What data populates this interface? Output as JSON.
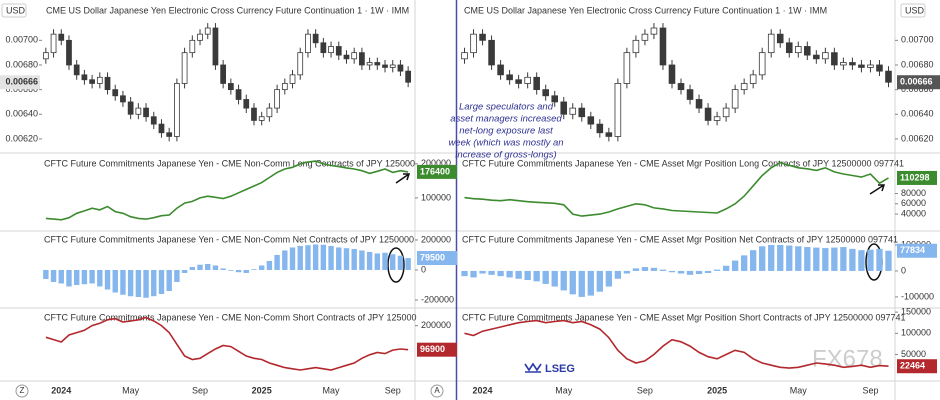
{
  "chart_data": [
    {
      "type": "candlestick",
      "title": "CME US Dollar Japanese Yen Electronic Cross Currency Future Continuation 1 · 1W · IMM",
      "currency": "USD",
      "categories": [
        null,
        null,
        "2024",
        null,
        null,
        null,
        null,
        null,
        null,
        null,
        null,
        "May",
        null,
        null,
        null,
        null,
        null,
        null,
        null,
        null,
        "Sep",
        null,
        null,
        null,
        null,
        null,
        null,
        null,
        "2025",
        null,
        null,
        null,
        null,
        null,
        null,
        null,
        null,
        "May",
        null,
        null,
        null,
        null,
        null,
        null,
        null,
        "Sep",
        null,
        null
      ],
      "open": [
        0.00685,
        0.0069,
        0.00705,
        0.007,
        0.0068,
        0.00672,
        0.00668,
        0.00665,
        0.0067,
        0.0066,
        0.00655,
        0.0065,
        0.0064,
        0.00645,
        0.00638,
        0.00632,
        0.00625,
        0.00622,
        0.00665,
        0.0069,
        0.007,
        0.00705,
        0.0071,
        0.0068,
        0.00665,
        0.0066,
        0.00652,
        0.00645,
        0.00635,
        0.00638,
        0.00645,
        0.0066,
        0.00665,
        0.00672,
        0.0069,
        0.00705,
        0.00698,
        0.0069,
        0.00695,
        0.00688,
        0.00685,
        0.0069,
        0.0068,
        0.00682,
        0.0068,
        0.00678,
        0.0068,
        0.00675
      ],
      "high": [
        0.00694,
        0.00709,
        0.00709,
        0.00704,
        0.00684,
        0.00676,
        0.00672,
        0.00674,
        0.00674,
        0.00664,
        0.00659,
        0.00654,
        0.00649,
        0.00649,
        0.00642,
        0.00636,
        0.00629,
        0.00669,
        0.00694,
        0.00704,
        0.00709,
        0.00714,
        0.00714,
        0.00684,
        0.00669,
        0.00664,
        0.00656,
        0.00649,
        0.00642,
        0.00649,
        0.00664,
        0.00669,
        0.00676,
        0.00694,
        0.00709,
        0.00709,
        0.00702,
        0.00699,
        0.00699,
        0.00692,
        0.00694,
        0.00694,
        0.00686,
        0.00686,
        0.00684,
        0.00684,
        0.00684,
        0.00679
      ],
      "low": [
        0.00681,
        0.00686,
        0.00696,
        0.00676,
        0.00668,
        0.00664,
        0.00661,
        0.00661,
        0.00656,
        0.00651,
        0.00646,
        0.00636,
        0.00636,
        0.00634,
        0.00628,
        0.00621,
        0.00618,
        0.00618,
        0.00661,
        0.00686,
        0.00696,
        0.00701,
        0.00676,
        0.00661,
        0.00656,
        0.00648,
        0.00641,
        0.00631,
        0.00631,
        0.00634,
        0.00641,
        0.00656,
        0.00661,
        0.00668,
        0.00686,
        0.00694,
        0.00686,
        0.00686,
        0.00684,
        0.00681,
        0.00681,
        0.00676,
        0.00676,
        0.00676,
        0.00674,
        0.00674,
        0.00671,
        0.00662
      ],
      "close": [
        0.0069,
        0.00705,
        0.007,
        0.0068,
        0.00672,
        0.00668,
        0.00665,
        0.0067,
        0.0066,
        0.00655,
        0.0065,
        0.0064,
        0.00645,
        0.00638,
        0.00632,
        0.00625,
        0.00622,
        0.00665,
        0.0069,
        0.007,
        0.00705,
        0.0071,
        0.0068,
        0.00665,
        0.0066,
        0.00652,
        0.00645,
        0.00635,
        0.00638,
        0.00645,
        0.0066,
        0.00665,
        0.00672,
        0.0069,
        0.00705,
        0.00698,
        0.0069,
        0.00695,
        0.00688,
        0.00685,
        0.0069,
        0.0068,
        0.00682,
        0.0068,
        0.00678,
        0.0068,
        0.00675,
        0.00666
      ],
      "color_up": "#ffffff",
      "color_down": "#3a3a3a",
      "ylim": [
        0.00611,
        0.007165
      ],
      "yticks": [
        {
          "value": 0.0062,
          "label": "0.00620"
        },
        {
          "value": 0.0064,
          "label": "0.00640"
        },
        {
          "value": 0.0066,
          "label": "0.00660"
        },
        {
          "value": 0.0068,
          "label": "0.00680"
        },
        {
          "value": 0.007,
          "label": "0.00700"
        }
      ]
    },
    {
      "type": "line",
      "title": "CFTC Future Commitments Japanese Yen - CME Non-Comm Long Contracts of JPY 125000",
      "color": "#3d8b2f",
      "values": [
        40000,
        38000,
        36000,
        42000,
        55000,
        62000,
        70000,
        65000,
        75000,
        60000,
        55000,
        45000,
        40000,
        38000,
        42000,
        48000,
        50000,
        70000,
        85000,
        90000,
        100000,
        105000,
        102000,
        98000,
        105000,
        115000,
        125000,
        135000,
        145000,
        160000,
        175000,
        185000,
        190000,
        200000,
        205000,
        208000,
        200000,
        195000,
        192000,
        188000,
        185000,
        180000,
        172000,
        178000,
        185000,
        175000,
        180000,
        176400
      ],
      "ylim": [
        6000,
        223000
      ],
      "yticks": [
        100000,
        200000
      ]
    },
    {
      "type": "bar",
      "title": "CFTC Future Commitments Japanese Yen - CME Non-Comm Net Contracts of JPY 1250000",
      "color": "#86b6ee",
      "values": [
        -60000,
        -80000,
        -90000,
        -110000,
        -100000,
        -95000,
        -90000,
        -110000,
        -130000,
        -150000,
        -165000,
        -175000,
        -180000,
        -185000,
        -175000,
        -160000,
        -140000,
        -80000,
        -20000,
        20000,
        35000,
        40000,
        30000,
        10000,
        -5000,
        -15000,
        -20000,
        5000,
        30000,
        60000,
        100000,
        130000,
        150000,
        160000,
        165000,
        170000,
        168000,
        160000,
        150000,
        145000,
        140000,
        130000,
        120000,
        110000,
        115000,
        105000,
        95000,
        79500
      ],
      "ylim": [
        -240000,
        253000
      ],
      "yticks": [
        -200000,
        0,
        200000
      ]
    },
    {
      "type": "line",
      "title": "CFTC Future Commitments Japanese Yen - CME Non-Comm Short Contracts of JPY 125000",
      "color": "#b3282d",
      "values": [
        150000,
        140000,
        130000,
        160000,
        170000,
        180000,
        200000,
        210000,
        225000,
        230000,
        215000,
        220000,
        225000,
        235000,
        220000,
        200000,
        170000,
        120000,
        70000,
        55000,
        60000,
        80000,
        100000,
        115000,
        110000,
        90000,
        70000,
        60000,
        55000,
        40000,
        30000,
        20000,
        15000,
        10000,
        15000,
        20000,
        15000,
        10000,
        20000,
        30000,
        40000,
        60000,
        75000,
        85000,
        80000,
        95000,
        100000,
        96900
      ],
      "ylim": [
        -33000,
        267000
      ],
      "yticks": [
        200000
      ]
    },
    {
      "type": "line",
      "title": "CFTC Future Commitments Japanese Yen - CME Asset Mgr Position Long Contracts of JPY 12500000 097741",
      "color": "#3d8b2f",
      "values": [
        72000,
        70000,
        69000,
        67000,
        66000,
        68000,
        66000,
        64000,
        63000,
        62000,
        61000,
        58000,
        40000,
        36000,
        38000,
        40000,
        44000,
        50000,
        55000,
        60000,
        58000,
        52000,
        50000,
        47000,
        46000,
        45000,
        44000,
        43000,
        42000,
        50000,
        60000,
        75000,
        95000,
        115000,
        130000,
        140000,
        135000,
        130000,
        128000,
        125000,
        130000,
        122000,
        118000,
        115000,
        112000,
        118000,
        100000,
        110298
      ],
      "ylim": [
        9000,
        153000
      ],
      "yticks": [
        40000,
        60000,
        80000
      ]
    },
    {
      "type": "bar",
      "title": "CFTC Future Commitments Japanese Yen - CME Asset Mgr Position Net Contracts of JPY 12500000 097741",
      "color": "#86b6ee",
      "values": [
        -20000,
        -25000,
        -10000,
        -15000,
        -20000,
        -25000,
        -30000,
        -35000,
        -40000,
        -50000,
        -60000,
        -75000,
        -90000,
        -100000,
        -95000,
        -80000,
        -60000,
        -30000,
        -10000,
        10000,
        15000,
        12000,
        5000,
        -5000,
        -10000,
        -15000,
        -12000,
        -8000,
        5000,
        20000,
        40000,
        60000,
        80000,
        95000,
        100000,
        100000,
        98000,
        95000,
        92000,
        90000,
        88000,
        90000,
        92000,
        85000,
        80000,
        82000,
        85000,
        77834
      ],
      "ylim": [
        -135000,
        150000
      ],
      "yticks": [
        -100000,
        0,
        100000
      ]
    },
    {
      "type": "line",
      "title": "CFTC Future Commitments Japanese Yen - CME Asset Mgr Position Short Contracts of JPY 12500000 097741",
      "color": "#b3282d",
      "values": [
        100000,
        95000,
        105000,
        110000,
        115000,
        120000,
        125000,
        128000,
        130000,
        125000,
        128000,
        130000,
        125000,
        128000,
        120000,
        110000,
        90000,
        60000,
        40000,
        30000,
        35000,
        50000,
        70000,
        85000,
        80000,
        70000,
        55000,
        45000,
        40000,
        50000,
        60000,
        55000,
        40000,
        30000,
        25000,
        20000,
        18000,
        20000,
        25000,
        30000,
        28000,
        25000,
        20000,
        22000,
        25000,
        20000,
        24000,
        22464
      ],
      "ylim": [
        -10000,
        155000
      ],
      "yticks": [
        50000,
        100000,
        150000
      ]
    }
  ],
  "annotation": [
    "Large speculators and",
    "asset managers increased",
    "net-long  exposure last",
    "week (which was mostly an",
    "increase of gross-longs)"
  ],
  "logo": "LSEG",
  "watermark": "FX678",
  "axis_buttons": [
    "Z",
    "A"
  ]
}
